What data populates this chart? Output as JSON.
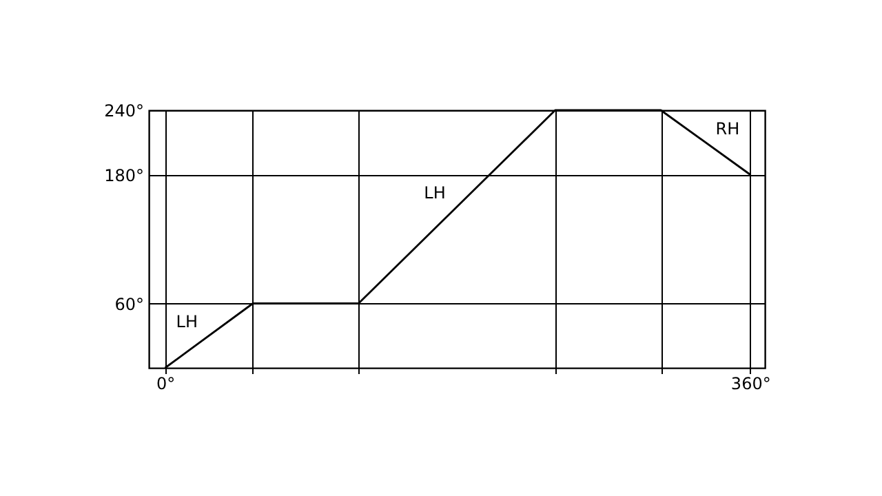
{
  "chart_data": {
    "type": "line",
    "x": [
      0,
      54,
      119,
      240,
      305,
      360
    ],
    "series": [
      {
        "color": "#000000",
        "values": [
          0,
          60,
          60,
          240,
          240,
          180
        ]
      }
    ],
    "xlim": [
      -10,
      369
    ],
    "xticks": [
      {
        "value": 0,
        "label": "0°"
      },
      {
        "value": 54,
        "label": null
      },
      {
        "value": 119,
        "label": null
      },
      {
        "value": 240,
        "label": null
      },
      {
        "value": 305,
        "label": null
      },
      {
        "value": 360,
        "label": "360°"
      }
    ],
    "ylim": [
      0,
      240
    ],
    "yticks": [
      {
        "value": 60,
        "label": "60°"
      },
      {
        "value": 180,
        "label": "180°"
      },
      {
        "value": 240,
        "label": "240°"
      }
    ],
    "grid": true,
    "marker": "none",
    "line_style": "solid",
    "annotations": [
      "LH",
      "LH",
      "RH"
    ]
  }
}
